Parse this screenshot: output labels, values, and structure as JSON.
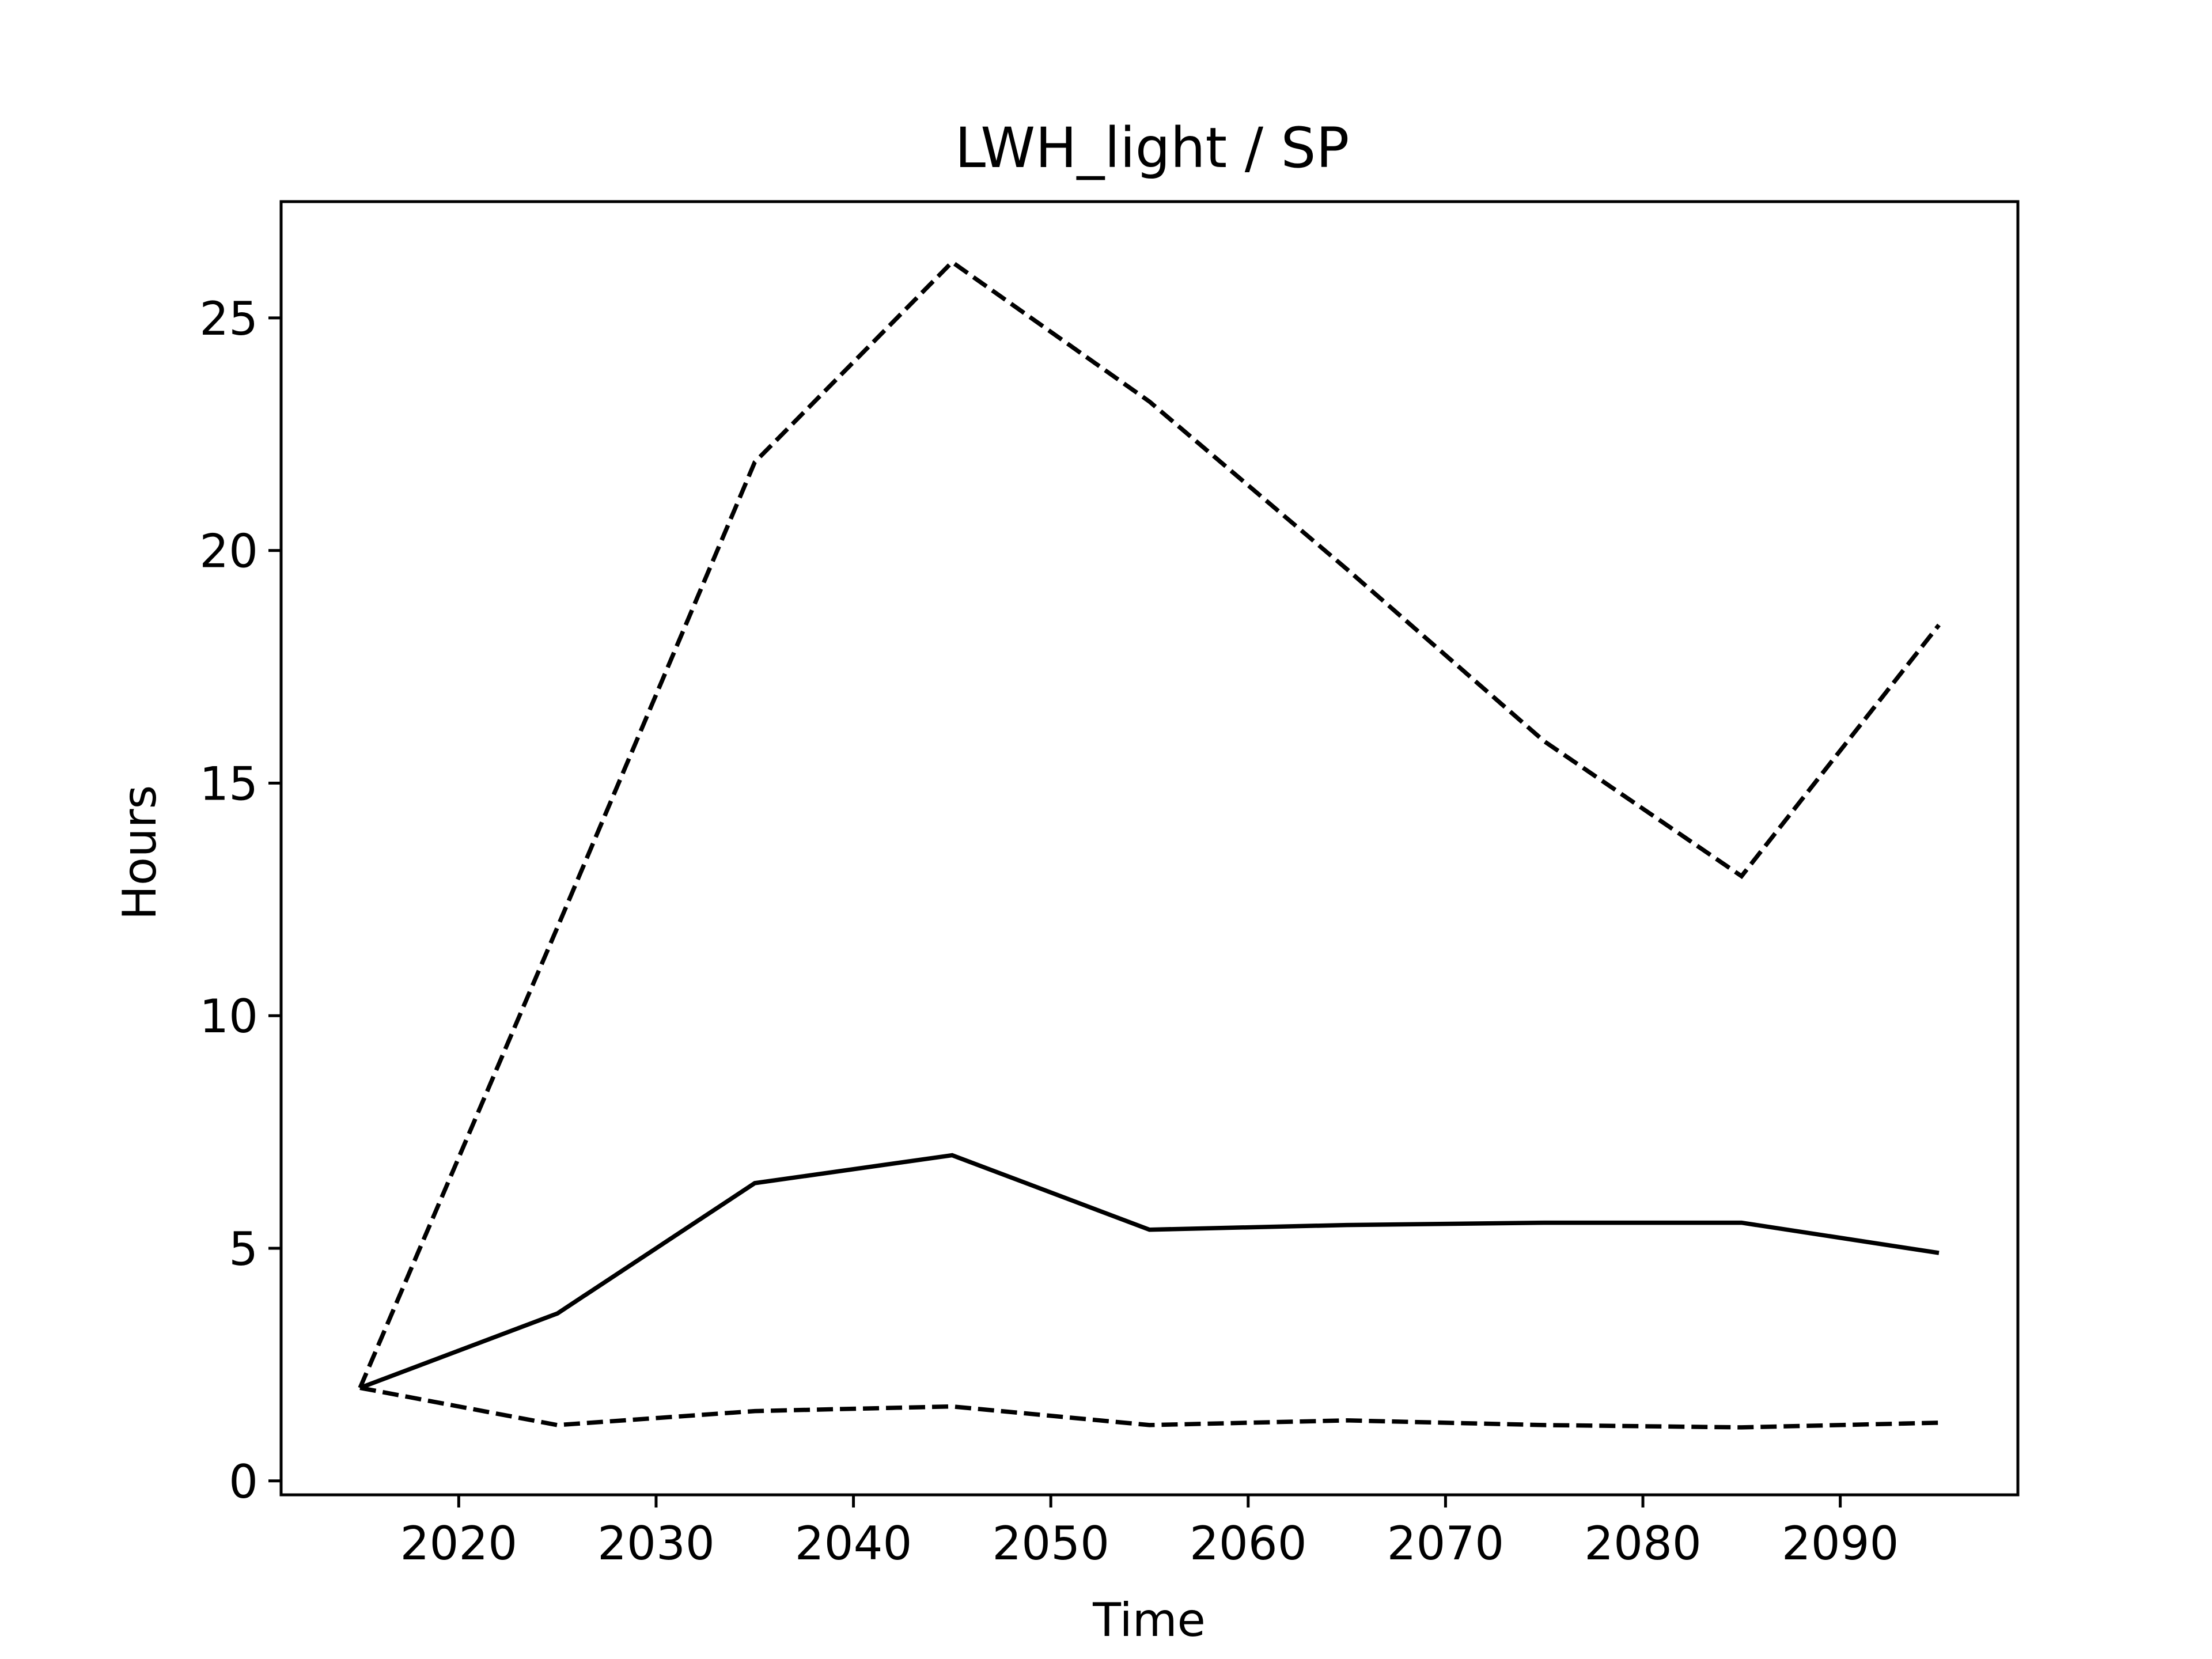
{
  "chart_data": {
    "type": "line",
    "title": "LWH_light / SP",
    "xlabel": "Time",
    "ylabel": "Hours",
    "xlim": [
      2011,
      2099
    ],
    "ylim": [
      -0.3,
      27.5
    ],
    "xticks": [
      2020,
      2030,
      2040,
      2050,
      2060,
      2070,
      2080,
      2090
    ],
    "yticks": [
      0,
      5,
      10,
      15,
      20,
      25
    ],
    "grid": false,
    "x": [
      2015,
      2025,
      2035,
      2045,
      2055,
      2065,
      2075,
      2085,
      2095
    ],
    "series": [
      {
        "style": "dashed",
        "values": [
          2.0,
          11.9,
          21.9,
          26.2,
          23.2,
          19.6,
          15.9,
          13.0,
          18.4
        ]
      },
      {
        "style": "solid",
        "values": [
          2.0,
          3.6,
          6.4,
          7.0,
          5.4,
          5.5,
          5.55,
          5.55,
          4.9
        ]
      },
      {
        "style": "dashed",
        "values": [
          2.0,
          1.2,
          1.5,
          1.6,
          1.2,
          1.3,
          1.2,
          1.15,
          1.25
        ]
      }
    ],
    "colors": {
      "line": "#000000",
      "background": "#ffffff"
    }
  }
}
